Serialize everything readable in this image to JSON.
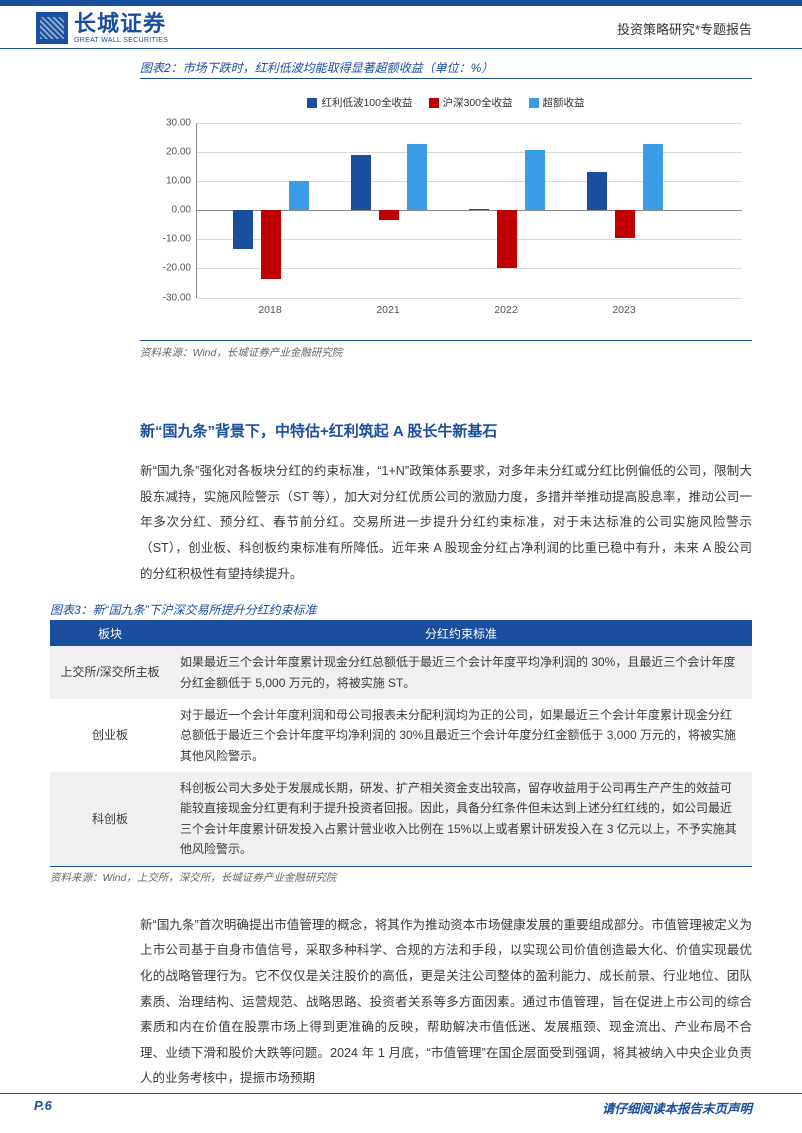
{
  "header": {
    "logo_cn": "长城证券",
    "logo_en": "GREAT WALL SECURITIES",
    "right_text": "投资策略研究*专题报告"
  },
  "chart2": {
    "title": "图表2：市场下跌时，红利低波均能取得显著超额收益（单位：%）",
    "type": "bar",
    "legend": [
      {
        "label": "红利低波100全收益",
        "color": "#1a4e9e"
      },
      {
        "label": "沪深300全收益",
        "color": "#c00000"
      },
      {
        "label": "超额收益",
        "color": "#3a9be6"
      }
    ],
    "categories": [
      "2018",
      "2021",
      "2022",
      "2023"
    ],
    "series": {
      "s1": [
        -13.5,
        19.0,
        0.5,
        13.0
      ],
      "s2": [
        -23.5,
        -3.5,
        -20.0,
        -9.5
      ],
      "s3": [
        10.0,
        22.5,
        20.5,
        22.5
      ]
    },
    "ylim": [
      -30,
      30
    ],
    "yticks": [
      -30,
      -20,
      -10,
      0,
      10,
      20,
      30
    ],
    "ytick_labels": [
      "-30.00",
      "-20.00",
      "-10.00",
      "0.00",
      "10.00",
      "20.00",
      "30.00"
    ],
    "bar_colors": [
      "#1a4e9e",
      "#c00000",
      "#3a9be6"
    ],
    "grid_color": "#d9d9d9",
    "source": "资料来源：Wind，长城证券产业金融研究院"
  },
  "section": {
    "heading": "新“国九条”背景下，中特估+红利筑起 A 股长牛新基石",
    "para1": "新“国九条”强化对各板块分红的约束标准，“1+N”政策体系要求，对多年未分红或分红比例偏低的公司，限制大股东减持，实施风险警示（ST 等），加大对分红优质公司的激励力度，多措并举推动提高股息率，推动公司一年多次分红、预分红、春节前分红。交易所进一步提升分红约束标准，对于未达标准的公司实施风险警示（ST），创业板、科创板约束标准有所降低。近年来 A 股现金分红占净利润的比重已稳中有升，未来 A 股公司的分红积极性有望持续提升。"
  },
  "table3": {
    "title": "图表3：新“国九条”下沪深交易所提升分红约束标准",
    "columns": [
      "板块",
      "分红约束标准"
    ],
    "rows": [
      {
        "label": "上交所/深交所主板",
        "text": "如果最近三个会计年度累计现金分红总额低于最近三个会计年度平均净利润的 30%，且最近三个会计年度分红金额低于 5,000 万元的，将被实施 ST。",
        "shade": true
      },
      {
        "label": "创业板",
        "text": "对于最近一个会计年度利润和母公司报表未分配利润均为正的公司，如果最近三个会计年度累计现金分红总额低于最近三个会计年度平均净利润的 30%且最近三个会计年度分红金额低于 3,000 万元的，将被实施其他风险警示。",
        "shade": false
      },
      {
        "label": "科创板",
        "text": "科创板公司大多处于发展成长期，研发、扩产相关资金支出较高，留存收益用于公司再生产产生的效益可能较直接现金分红更有利于提升投资者回报。因此，具备分红条件但未达到上述分红红线的，如公司最近三个会计年度累计研发投入占累计营业收入比例在 15%以上或者累计研发投入在 3 亿元以上，不予实施其他风险警示。",
        "shade": true
      }
    ],
    "source": "资料来源：Wind，上交所，深交所，长城证券产业金融研究院"
  },
  "lower": {
    "para": "新“国九条”首次明确提出市值管理的概念，将其作为推动资本市场健康发展的重要组成部分。市值管理被定义为上市公司基于自身市值信号，采取多种科学、合规的方法和手段，以实现公司价值创造最大化、价值实现最优化的战略管理行为。它不仅仅是关注股价的高低，更是关注公司整体的盈利能力、成长前景、行业地位、团队素质、治理结构、运营规范、战略思路、投资者关系等多方面因素。通过市值管理，旨在促进上市公司的综合素质和内在价值在股票市场上得到更准确的反映，帮助解决市值低迷、发展瓶颈、现金流出、产业布局不合理、业绩下滑和股价大跌等问题。2024 年 1 月底，“市值管理”在国企层面受到强调，将其被纳入中央企业负责人的业务考核中，提振市场预期"
  },
  "footer": {
    "left": "P.6",
    "right": "请仔细阅读本报告末页声明"
  }
}
